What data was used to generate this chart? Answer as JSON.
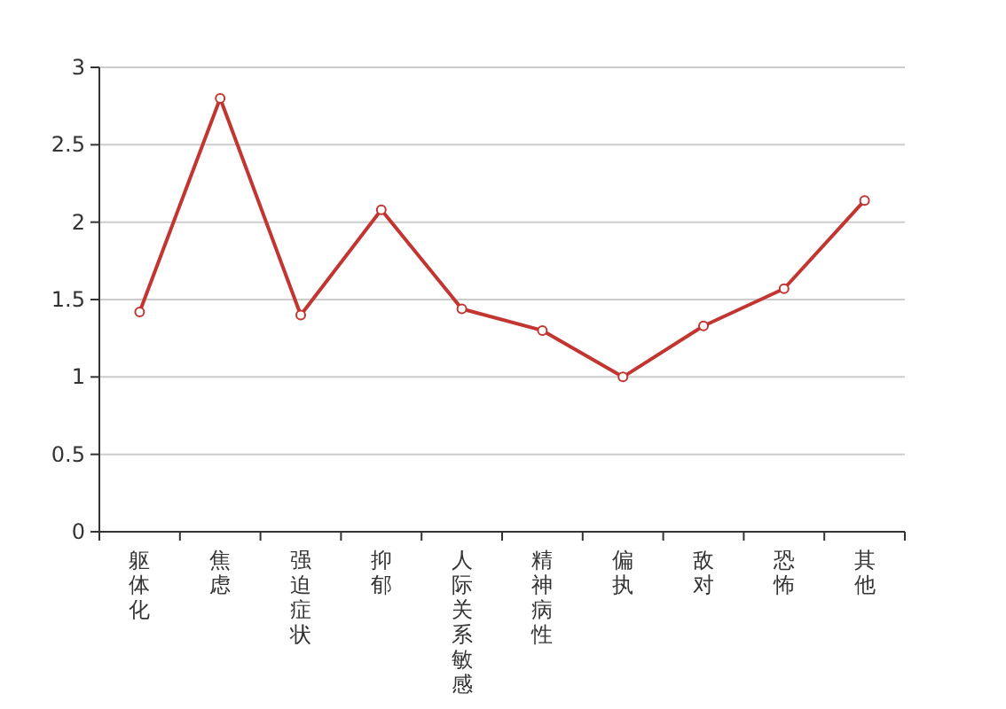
{
  "chart_data": {
    "type": "line",
    "categories": [
      "躯体化",
      "焦虑",
      "强迫症状",
      "抑郁",
      "人际关系敏感",
      "精神病性",
      "偏执",
      "敌对",
      "恐怖",
      "其他"
    ],
    "series": [
      {
        "color": "#c23531",
        "values": [
          1.42,
          2.8,
          1.4,
          2.08,
          1.44,
          1.3,
          1.0,
          1.33,
          1.57,
          2.14
        ]
      }
    ],
    "ylim": [
      0,
      3
    ],
    "yticks": [
      0,
      0.5,
      1,
      1.5,
      2,
      2.5,
      3
    ],
    "grid": "y",
    "marker": "circle",
    "line_style": "solid"
  }
}
